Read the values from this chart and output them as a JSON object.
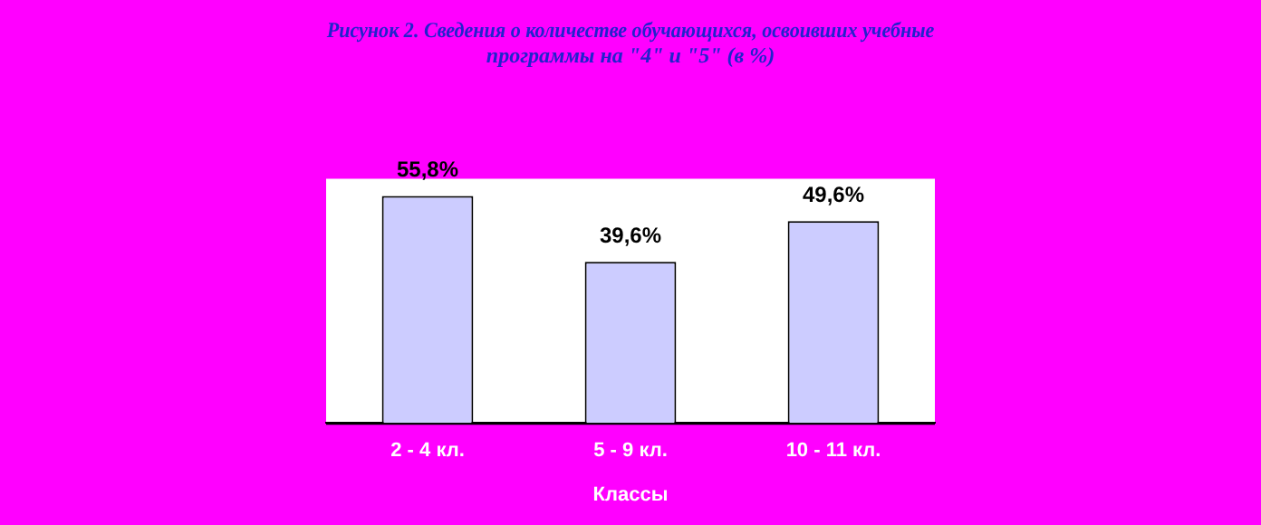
{
  "chart_data": {
    "type": "bar",
    "title": [
      "Рисунок 2. Сведения о количестве обучающихся, освоивших учебные",
      "программы на \"4\" и \"5\" (в %)"
    ],
    "xlabel": "Классы",
    "categories": [
      "2 - 4 кл.",
      "5 - 9 кл.",
      "10 - 11 кл."
    ],
    "values": [
      55.8,
      39.6,
      49.6
    ],
    "color": "#ccccff",
    "value_labels": [
      "55,8%",
      "39,6%",
      "49,6%"
    ],
    "grid": false,
    "legend": false
  }
}
